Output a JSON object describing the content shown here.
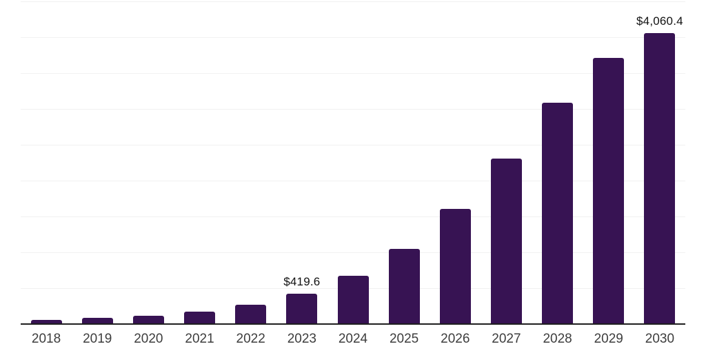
{
  "chart_data": {
    "type": "bar",
    "title": "",
    "xlabel": "",
    "ylabel": "",
    "categories": [
      "2018",
      "2019",
      "2020",
      "2021",
      "2022",
      "2023",
      "2024",
      "2025",
      "2026",
      "2027",
      "2028",
      "2029",
      "2030"
    ],
    "values": [
      62,
      90,
      120,
      172,
      265,
      419.6,
      672,
      1052,
      1606,
      2304,
      3085,
      3716,
      4060.4
    ],
    "point_labels": [
      null,
      null,
      null,
      null,
      null,
      "$419.6",
      null,
      null,
      null,
      null,
      null,
      null,
      "$4,060.4"
    ],
    "labeled_points": [
      {
        "category": "2023",
        "label": "$419.6",
        "value": 419.6
      },
      {
        "category": "2030",
        "label": "$4,060.4",
        "value": 4060.4
      }
    ],
    "ylim": [
      0,
      4500
    ],
    "grid_step": 500,
    "grid_visible": true,
    "y_axis_tick_labels": "none",
    "legend_position": "none",
    "colors": {
      "bar": "#371353",
      "gridline": "#f1f1f1",
      "axis_line": "#1f1f1f",
      "x_tick_label": "#3d3d3d",
      "point_label": "#111111",
      "background": "#ffffff"
    }
  }
}
